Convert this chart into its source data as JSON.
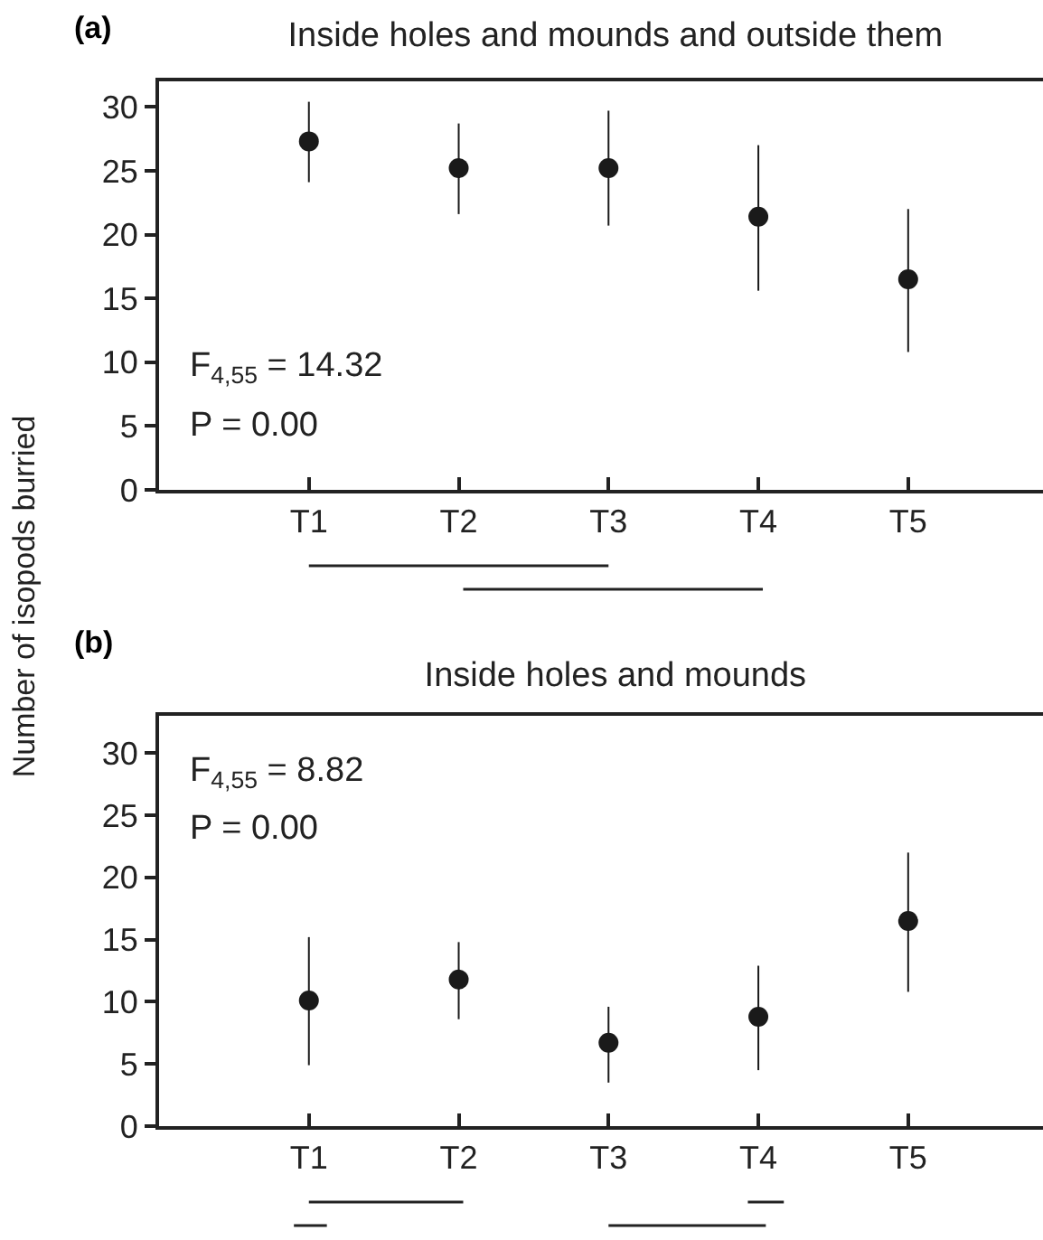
{
  "chart_data": [
    {
      "type": "scatter",
      "title": "Inside holes and mounds and outside them",
      "ylabel": "Number of isopods burried",
      "categories": [
        "T1",
        "T2",
        "T3",
        "T4",
        "T5"
      ],
      "series": [
        {
          "color": "#1a1a1a",
          "values": [
            27.3,
            25.2,
            25.2,
            21.4,
            16.5
          ],
          "errors": [
            [
              24.1,
              30.4
            ],
            [
              21.6,
              28.7
            ],
            [
              20.7,
              29.7
            ],
            [
              15.6,
              27.0
            ],
            [
              10.8,
              22.0
            ]
          ]
        }
      ],
      "ylim": [
        0,
        32
      ],
      "yticks": [
        0,
        5,
        10,
        15,
        20,
        25,
        30
      ],
      "grid": false,
      "marker": "circle",
      "annotations": [
        "(a)",
        "F$_{4,55}$ = 14.32",
        "P = 0.00"
      ]
    },
    {
      "type": "scatter",
      "title": "Inside holes and mounds",
      "categories": [
        "T1",
        "T2",
        "T3",
        "T4",
        "T5"
      ],
      "series": [
        {
          "color": "#1a1a1a",
          "values": [
            10.1,
            11.8,
            6.7,
            8.8,
            16.5
          ],
          "errors": [
            [
              4.9,
              15.2
            ],
            [
              8.6,
              14.8
            ],
            [
              3.5,
              9.6
            ],
            [
              4.5,
              12.9
            ],
            [
              10.8,
              22.0
            ]
          ]
        }
      ],
      "ylim": [
        0,
        33
      ],
      "yticks": [
        0,
        5,
        10,
        15,
        20,
        25,
        30
      ],
      "grid": false,
      "marker": "circle",
      "annotations": [
        "(b)",
        "F$_{4,55}$ = 8.82",
        "P = 0.00"
      ]
    }
  ]
}
